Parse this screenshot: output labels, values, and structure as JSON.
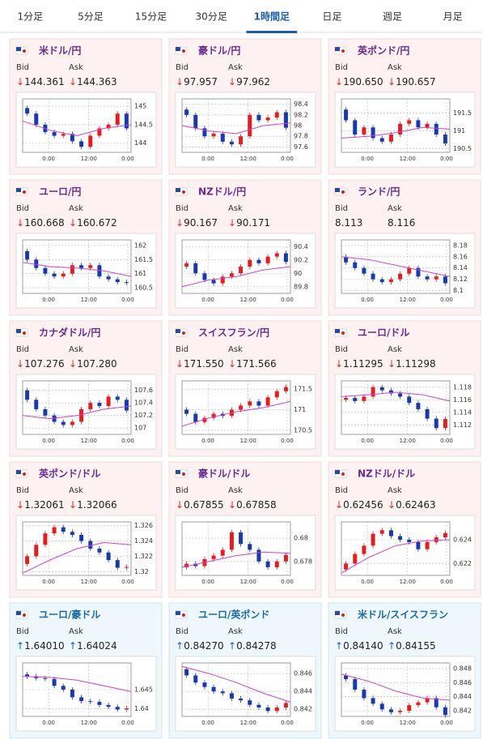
{
  "tabs": {
    "items": [
      "1分足",
      "5分足",
      "15分足",
      "30分足",
      "1時間足",
      "日足",
      "週足",
      "月足"
    ],
    "active": 4
  },
  "bid_label": "Bid",
  "ask_label": "Ask",
  "chart_xlabels": [
    "0:00",
    "12:00",
    "0:00"
  ],
  "cards": [
    {
      "name": "米ドル/円",
      "dir": "down",
      "arrow": "↓",
      "bid": "144.361",
      "ask": "144.363",
      "chart": {
        "type": "candlestick",
        "ylim": [
          143.75,
          145.2
        ],
        "yticks": [
          145,
          144.5,
          144
        ],
        "open": 144.95,
        "closes": [
          144.8,
          144.5,
          144.3,
          144.2,
          144.25,
          144.05,
          143.9,
          144.2,
          144.4,
          144.5,
          144.8,
          144.4
        ],
        "ma": [
          144.6,
          144.35,
          144.2,
          144.4,
          144.5
        ]
      }
    },
    {
      "name": "豪ドル/円",
      "dir": "down",
      "arrow": "↓",
      "bid": "97.957",
      "ask": "97.962",
      "chart": {
        "type": "candlestick",
        "ylim": [
          97.5,
          98.5
        ],
        "yticks": [
          98.4,
          98.2,
          98,
          97.8,
          97.6
        ],
        "open": 98.3,
        "closes": [
          98.2,
          97.95,
          97.8,
          97.85,
          97.7,
          97.65,
          97.8,
          98.2,
          98.1,
          98.15,
          98.25,
          97.96
        ],
        "ma": [
          98.0,
          97.9,
          97.85,
          98.0,
          98.05
        ]
      }
    },
    {
      "name": "英ポンド/円",
      "dir": "down",
      "arrow": "↓",
      "bid": "190.650",
      "ask": "190.657",
      "chart": {
        "type": "candlestick",
        "ylim": [
          190.4,
          191.9
        ],
        "yticks": [
          191.5,
          191,
          190.5
        ],
        "open": 191.6,
        "closes": [
          191.3,
          190.9,
          191.1,
          190.8,
          190.7,
          190.9,
          191.2,
          191.3,
          191.1,
          191.2,
          190.9,
          190.65
        ],
        "ma": [
          190.8,
          190.85,
          190.95,
          191.1,
          191.05
        ]
      }
    },
    {
      "name": "ユーロ/円",
      "dir": "down",
      "arrow": "↓",
      "bid": "160.668",
      "ask": "160.672",
      "chart": {
        "type": "candlestick",
        "ylim": [
          160.3,
          162.2
        ],
        "yticks": [
          162,
          161.5,
          161,
          160.5
        ],
        "open": 161.8,
        "closes": [
          161.5,
          161.2,
          161.0,
          160.9,
          161.0,
          161.3,
          161.2,
          161.3,
          160.9,
          160.8,
          160.7,
          160.67
        ],
        "ma": [
          161.4,
          161.25,
          161.2,
          161.1,
          160.9
        ]
      }
    },
    {
      "name": "NZドル/円",
      "dir": "down",
      "arrow": "↓",
      "bid": "90.167",
      "ask": "90.171",
      "chart": {
        "type": "candlestick",
        "ylim": [
          89.7,
          90.5
        ],
        "yticks": [
          90.4,
          90.2,
          90,
          89.8
        ],
        "open": 90.1,
        "closes": [
          90.15,
          90.0,
          89.9,
          89.85,
          89.95,
          90.0,
          90.1,
          90.2,
          90.15,
          90.25,
          90.3,
          90.17
        ],
        "ma": [
          89.8,
          89.9,
          89.95,
          90.05,
          90.1
        ]
      }
    },
    {
      "name": "ランド/円",
      "dir": "none",
      "arrow": "",
      "bid": "8.113",
      "ask": "8.116",
      "chart": {
        "type": "candlestick",
        "ylim": [
          8.095,
          8.19
        ],
        "yticks": [
          8.18,
          8.16,
          8.14,
          8.12,
          8.1
        ],
        "open": 8.16,
        "closes": [
          8.15,
          8.14,
          8.13,
          8.12,
          8.115,
          8.12,
          8.13,
          8.14,
          8.125,
          8.12,
          8.125,
          8.113
        ],
        "ma": [
          8.16,
          8.155,
          8.145,
          8.135,
          8.125
        ]
      }
    },
    {
      "name": "カナダドル/円",
      "dir": "down",
      "arrow": "↓",
      "bid": "107.276",
      "ask": "107.280",
      "chart": {
        "type": "candlestick",
        "ylim": [
          106.9,
          107.75
        ],
        "yticks": [
          107.6,
          107.4,
          107.2,
          107
        ],
        "open": 107.6,
        "closes": [
          107.45,
          107.3,
          107.2,
          107.1,
          107.05,
          107.1,
          107.3,
          107.4,
          107.35,
          107.5,
          107.45,
          107.28
        ],
        "ma": [
          107.2,
          107.15,
          107.2,
          107.3,
          107.35
        ]
      }
    },
    {
      "name": "スイスフラン/円",
      "dir": "down",
      "arrow": "↓",
      "bid": "171.550",
      "ask": "171.566",
      "chart": {
        "type": "candlestick",
        "ylim": [
          170.4,
          171.7
        ],
        "yticks": [
          171.5,
          171,
          170.5
        ],
        "open": 171.0,
        "closes": [
          170.9,
          170.7,
          170.8,
          170.9,
          170.85,
          171.0,
          171.1,
          171.2,
          171.1,
          171.3,
          171.45,
          171.55
        ],
        "ma": [
          170.6,
          170.8,
          170.95,
          171.05,
          171.2
        ]
      }
    },
    {
      "name": "ユーロ/ドル",
      "dir": "down",
      "arrow": "↓",
      "bid": "1.11295",
      "ask": "1.11298",
      "chart": {
        "type": "candlestick",
        "ylim": [
          1.1105,
          1.119
        ],
        "yticks": [
          1.118,
          1.116,
          1.114,
          1.112
        ],
        "open": 1.116,
        "closes": [
          1.1163,
          1.1158,
          1.1165,
          1.118,
          1.1175,
          1.117,
          1.1165,
          1.1155,
          1.1145,
          1.113,
          1.1115,
          1.11295
        ],
        "ma": [
          1.1165,
          1.1168,
          1.1172,
          1.1168,
          1.1158
        ]
      }
    },
    {
      "name": "英ポンド/ドル",
      "dir": "down",
      "arrow": "↓",
      "bid": "1.32061",
      "ask": "1.32066",
      "chart": {
        "type": "candlestick",
        "ylim": [
          1.3195,
          1.3265
        ],
        "yticks": [
          1.326,
          1.324,
          1.322,
          1.32
        ],
        "open": 1.321,
        "closes": [
          1.322,
          1.3235,
          1.325,
          1.3258,
          1.3252,
          1.3248,
          1.324,
          1.323,
          1.3225,
          1.3215,
          1.3205,
          1.32061
        ],
        "ma": [
          1.3198,
          1.3215,
          1.323,
          1.3238,
          1.3235
        ]
      }
    },
    {
      "name": "豪ドル/ドル",
      "dir": "down",
      "arrow": "↓",
      "bid": "0.67855",
      "ask": "0.67858",
      "chart": {
        "type": "candlestick",
        "ylim": [
          0.6768,
          0.6814
        ],
        "yticks": [
          0.68,
          0.678
        ],
        "open": 0.6775,
        "closes": [
          0.6778,
          0.6776,
          0.6782,
          0.6785,
          0.679,
          0.6805,
          0.6795,
          0.679,
          0.678,
          0.6775,
          0.678,
          0.67855
        ],
        "ma": [
          0.6775,
          0.678,
          0.6785,
          0.6788,
          0.6787
        ]
      }
    },
    {
      "name": "NZドル/ドル",
      "dir": "down",
      "arrow": "↓",
      "bid": "0.62456",
      "ask": "0.62463",
      "chart": {
        "type": "candlestick",
        "ylim": [
          0.621,
          0.6255
        ],
        "yticks": [
          0.624,
          0.622
        ],
        "open": 0.6215,
        "closes": [
          0.622,
          0.6228,
          0.6235,
          0.6245,
          0.6248,
          0.6243,
          0.624,
          0.6238,
          0.6232,
          0.6238,
          0.6242,
          0.62456
        ],
        "ma": [
          0.6212,
          0.6225,
          0.6235,
          0.6239,
          0.624
        ]
      }
    },
    {
      "name": "ユーロ/豪ドル",
      "dir": "up",
      "arrow": "↑",
      "bid": "1.64010",
      "ask": "1.64024",
      "chart": {
        "type": "candlestick",
        "ylim": [
          1.638,
          1.652
        ],
        "yticks": [
          1.645,
          1.64
        ],
        "open": 1.649,
        "closes": [
          1.6485,
          1.648,
          1.6478,
          1.646,
          1.645,
          1.643,
          1.642,
          1.6418,
          1.641,
          1.6405,
          1.6398,
          1.6401
        ],
        "ma": [
          1.6485,
          1.6482,
          1.6475,
          1.646,
          1.6445
        ]
      }
    },
    {
      "name": "ユーロ/英ポンド",
      "dir": "up",
      "arrow": "↑",
      "bid": "0.84270",
      "ask": "0.84278",
      "chart": {
        "type": "candlestick",
        "ylim": [
          0.8412,
          0.8472
        ],
        "yticks": [
          0.846,
          0.844,
          0.842
        ],
        "open": 0.8465,
        "closes": [
          0.8458,
          0.845,
          0.8445,
          0.844,
          0.8438,
          0.8432,
          0.843,
          0.8425,
          0.8422,
          0.8418,
          0.8422,
          0.8427
        ],
        "ma": [
          0.8468,
          0.846,
          0.845,
          0.8438,
          0.8428
        ]
      }
    },
    {
      "name": "米ドル/スイスフラン",
      "dir": "up",
      "arrow": "↑",
      "bid": "0.84140",
      "ask": "0.84155",
      "chart": {
        "type": "candlestick",
        "ylim": [
          0.8412,
          0.8488
        ],
        "yticks": [
          0.848,
          0.846,
          0.844,
          0.842
        ],
        "open": 0.847,
        "closes": [
          0.8465,
          0.845,
          0.8438,
          0.843,
          0.8422,
          0.8418,
          0.842,
          0.8428,
          0.8432,
          0.8438,
          0.8425,
          0.8414
        ],
        "ma": [
          0.8472,
          0.8462,
          0.8448,
          0.8438,
          0.8435
        ]
      }
    }
  ]
}
